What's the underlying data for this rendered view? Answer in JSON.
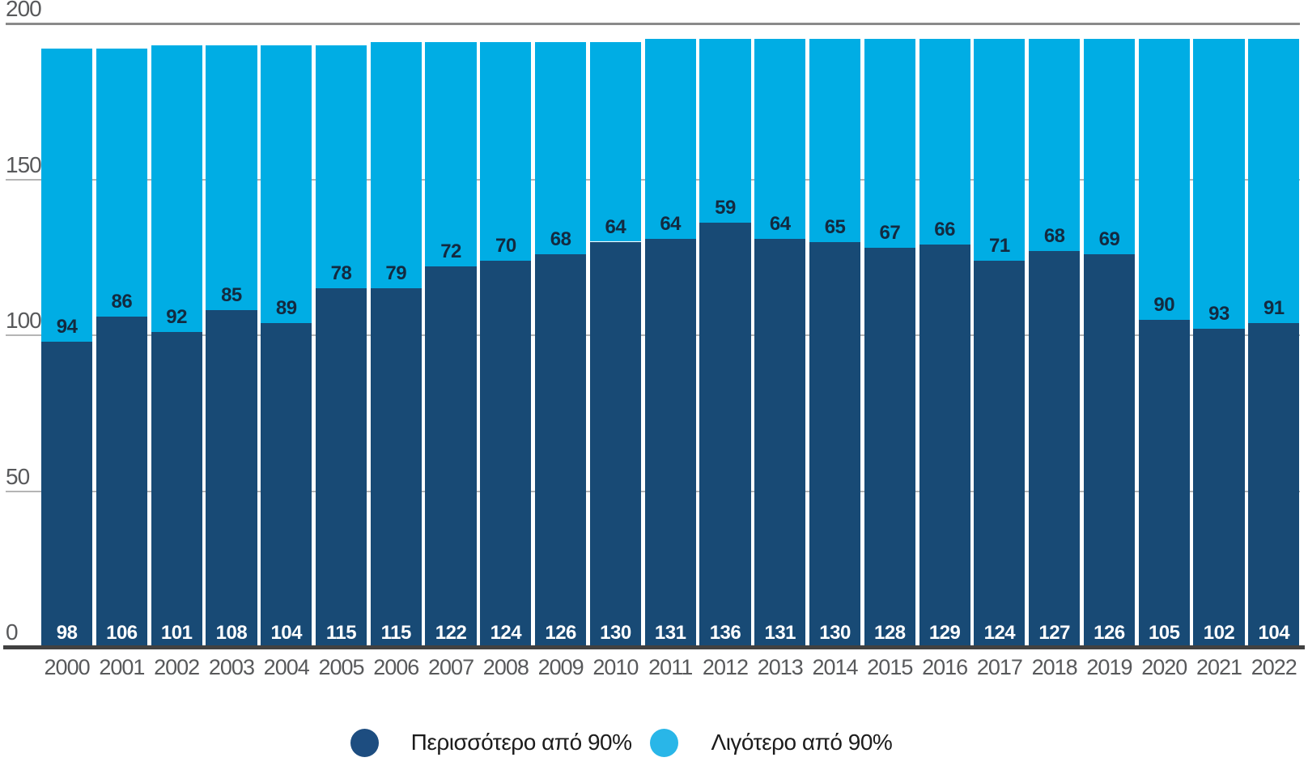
{
  "chart_data": {
    "type": "bar",
    "stacked": true,
    "title": "",
    "xlabel": "",
    "ylabel": "",
    "categories": [
      "2000",
      "2001",
      "2002",
      "2003",
      "2004",
      "2005",
      "2006",
      "2007",
      "2008",
      "2009",
      "2010",
      "2011",
      "2012",
      "2013",
      "2014",
      "2015",
      "2016",
      "2017",
      "2018",
      "2019",
      "2020",
      "2021",
      "2022"
    ],
    "series": [
      {
        "name": "Περισσότερο από 90%",
        "color": "#184A75",
        "label_color": "#FFFFFF",
        "values": [
          98,
          106,
          101,
          108,
          104,
          115,
          115,
          122,
          124,
          126,
          130,
          131,
          136,
          131,
          130,
          128,
          129,
          124,
          127,
          126,
          105,
          102,
          104
        ]
      },
      {
        "name": "Λιγότερο από 90%",
        "color": "#00ADE4",
        "label_color": "#132A40",
        "values": [
          94,
          86,
          92,
          85,
          89,
          78,
          79,
          72,
          70,
          68,
          64,
          64,
          59,
          64,
          65,
          67,
          66,
          71,
          68,
          69,
          90,
          93,
          91
        ]
      }
    ],
    "ylim": [
      0,
      200
    ],
    "yticks": [
      "0",
      "50",
      "100",
      "150",
      "200"
    ],
    "grid": "horizontal",
    "legend_position": "bottom-center",
    "value_labels": "bottom labels show dark series (white text inside bar), upper labels show light series (dark text above boundary)"
  },
  "colors": {
    "background": "#FFFFFF",
    "gridline": "#B5B5B5",
    "topline": "#8A8A8A",
    "baseline": "#414141",
    "axis_text": "#58595B",
    "legend_text": "#1C1C1C"
  },
  "legend": {
    "items": [
      {
        "label": "Περισσότερο από 90%",
        "color": "#1D4D80"
      },
      {
        "label": "Λιγότερο από 90%",
        "color": "#29B6E8"
      }
    ]
  }
}
